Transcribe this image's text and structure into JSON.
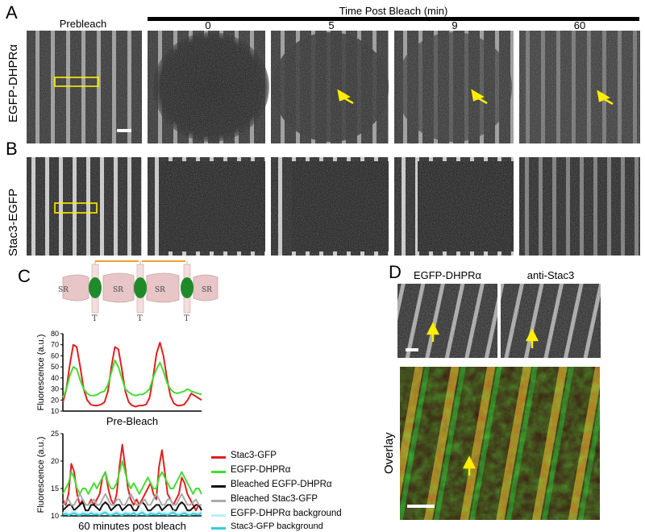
{
  "panels": {
    "A": "A",
    "B": "B",
    "C": "C",
    "D": "D"
  },
  "panel_AB": {
    "prebleach_label": "Prebleach",
    "time_header": "Time Post Bleach (min)",
    "timepoints": [
      "0",
      "5",
      "9",
      "60"
    ],
    "row_labels": [
      "EGFP-DHPRα",
      "Stac3-EGFP"
    ]
  },
  "panel_C": {
    "schematic_labels": {
      "sr": "SR",
      "t": "T"
    },
    "chart_data": [
      {
        "type": "line",
        "title": "",
        "xlabel": "Pre-Bleach",
        "ylabel": "Fluorescence (a.u.)",
        "ylim": [
          10,
          80
        ],
        "yticks": [
          10,
          20,
          30,
          40,
          50,
          60,
          70,
          80
        ],
        "x": [
          0,
          1,
          2,
          3,
          4,
          5,
          6,
          7,
          8,
          9,
          10,
          11,
          12,
          13,
          14,
          15,
          16,
          17,
          18,
          19,
          20,
          21,
          22,
          23,
          24,
          25,
          26,
          27,
          28,
          29,
          30,
          31,
          32,
          33,
          34,
          35,
          36,
          37,
          38,
          39,
          40
        ],
        "series": [
          {
            "name": "Stac3-GFP",
            "color": "#e02020",
            "values": [
              18,
              30,
              52,
              70,
              68,
              50,
              30,
              20,
              16,
              15,
              15,
              16,
              18,
              28,
              50,
              68,
              66,
              48,
              28,
              18,
              15,
              14,
              15,
              15,
              16,
              22,
              40,
              62,
              72,
              60,
              40,
              24,
              17,
              15,
              15,
              16,
              20,
              26,
              24,
              22,
              20
            ]
          },
          {
            "name": "EGFP-DHPRα",
            "color": "#44dd33",
            "values": [
              22,
              30,
              42,
              50,
              48,
              38,
              30,
              26,
              24,
              24,
              25,
              27,
              28,
              34,
              45,
              56,
              50,
              40,
              30,
              27,
              25,
              24,
              25,
              25,
              27,
              30,
              40,
              48,
              54,
              46,
              36,
              30,
              27,
              26,
              27,
              28,
              30,
              28,
              27,
              26,
              25
            ]
          }
        ]
      },
      {
        "type": "line",
        "title": "",
        "xlabel": "60 minutes post bleach",
        "ylabel": "Fluorescence (a.u.)",
        "ylim": [
          10,
          25
        ],
        "yticks": [
          10,
          15,
          20,
          25
        ],
        "x": [
          0,
          1,
          2,
          3,
          4,
          5,
          6,
          7,
          8,
          9,
          10,
          11,
          12,
          13,
          14,
          15,
          16,
          17,
          18,
          19,
          20,
          21,
          22,
          23,
          24,
          25,
          26,
          27,
          28,
          29,
          30,
          31,
          32,
          33,
          34,
          35,
          36,
          37,
          38,
          39,
          40,
          41,
          42,
          43,
          44,
          45,
          46,
          47,
          48,
          49
        ],
        "series": [
          {
            "name": "Stac3-GFP",
            "color": "#e02020",
            "values": [
              13,
              12,
              14,
              19.5,
              18,
              14,
              12,
              13,
              12,
              12,
              13,
              12,
              13,
              14,
              17,
              18,
              15,
              13,
              12,
              14,
              19,
              23,
              19,
              15,
              13,
              12,
              13,
              12,
              13,
              14,
              15,
              16,
              14,
              13,
              19,
              22,
              18,
              14,
              13,
              12,
              13,
              14,
              17,
              16,
              14,
              13,
              12,
              11,
              12,
              11
            ]
          },
          {
            "name": "EGFP-DHPRα",
            "color": "#44dd33",
            "values": [
              14,
              15,
              16,
              18,
              17,
              15,
              14,
              15,
              15,
              14,
              15,
              16,
              15,
              16,
              17,
              18,
              16,
              15,
              15,
              16,
              18,
              20,
              18,
              16,
              15,
              16,
              15,
              14,
              15,
              16,
              17,
              16,
              15,
              15,
              17,
              18,
              17,
              16,
              15,
              15,
              16,
              17,
              18,
              17,
              16,
              15,
              14,
              15,
              15,
              14
            ]
          },
          {
            "name": "Bleached EGFP-DHPRα",
            "color": "#111111",
            "values": [
              11,
              11.5,
              12,
              12,
              11,
              11.5,
              12,
              12.5,
              11,
              11,
              12,
              12,
              11.5,
              11,
              12,
              12.5,
              12,
              11,
              11.5,
              12,
              12,
              11,
              11.5,
              12,
              12,
              11,
              11,
              12,
              12.5,
              12,
              11,
              11,
              11.5,
              12,
              12,
              11,
              11.5,
              12,
              12,
              11,
              11,
              12,
              12.5,
              12,
              11,
              11,
              11.5,
              12,
              12,
              11
            ]
          },
          {
            "name": "Bleached Stac3-GFP",
            "color": "#aaaaaa",
            "values": [
              12,
              12.5,
              13,
              12,
              12,
              13,
              14,
              13,
              12,
              12,
              12.5,
              13,
              12,
              12,
              13,
              14,
              13,
              12,
              12,
              13,
              13,
              12,
              12,
              13,
              14,
              13,
              12,
              12,
              12.5,
              13,
              12,
              12,
              13,
              14,
              13,
              12,
              12,
              13,
              13,
              12,
              12,
              13,
              14,
              13,
              12,
              12,
              12.5,
              13,
              12,
              12
            ]
          },
          {
            "name": "EGFP-DHPRα background",
            "color": "#b7f0f5",
            "values": [
              10.5,
              10.8,
              10.4,
              10.6,
              10.9,
              10.5,
              10.3,
              10.7,
              10.6,
              10.4,
              10.8,
              10.5,
              10.6,
              10.4,
              10.7,
              10.9,
              10.5,
              10.4,
              10.6,
              10.8,
              10.5,
              10.4,
              10.7,
              10.6,
              10.5,
              10.8,
              10.4,
              10.6,
              10.9,
              10.5,
              10.3,
              10.7,
              10.6,
              10.4,
              10.8,
              10.5,
              10.6,
              10.4,
              10.7,
              10.9,
              10.5,
              10.4,
              10.6,
              10.8,
              10.5,
              10.4,
              10.7,
              10.6,
              10.5,
              10.8
            ]
          },
          {
            "name": "Stac3-GFP background",
            "color": "#33ccdd",
            "values": [
              10.2,
              10.4,
              10.1,
              10.3,
              10.5,
              10.2,
              10.1,
              10.4,
              10.3,
              10.2,
              10.5,
              10.2,
              10.3,
              10.1,
              10.4,
              10.6,
              10.2,
              10.1,
              10.3,
              10.5,
              10.2,
              10.1,
              10.4,
              10.3,
              10.2,
              10.5,
              10.1,
              10.3,
              10.6,
              10.2,
              10.1,
              10.4,
              10.3,
              10.2,
              10.5,
              10.2,
              10.3,
              10.1,
              10.4,
              10.6,
              10.2,
              10.1,
              10.3,
              10.5,
              10.2,
              10.1,
              10.4,
              10.3,
              10.2,
              10.5
            ]
          }
        ]
      }
    ]
  },
  "panel_D": {
    "labels": [
      "EGFP-DHPRα",
      "anti-Stac3"
    ],
    "overlay_label": "Overlay"
  },
  "colors": {
    "arrow": "#ffee00",
    "roi_box": "#ffee00"
  }
}
